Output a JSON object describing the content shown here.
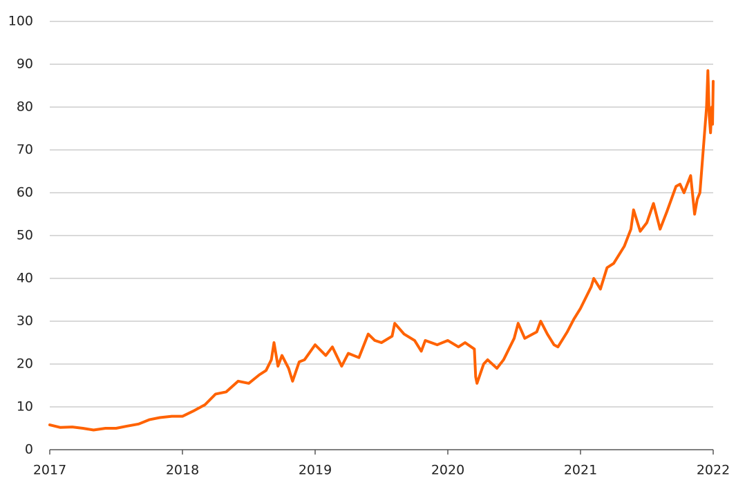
{
  "chart_data": {
    "type": "line",
    "x": [
      2017.0,
      2017.08,
      2017.17,
      2017.25,
      2017.33,
      2017.42,
      2017.5,
      2017.58,
      2017.67,
      2017.75,
      2017.83,
      2017.92,
      2018.0,
      2018.08,
      2018.17,
      2018.25,
      2018.33,
      2018.42,
      2018.5,
      2018.58,
      2018.63,
      2018.67,
      2018.69,
      2018.72,
      2018.75,
      2018.8,
      2018.83,
      2018.88,
      2018.92,
      2019.0,
      2019.08,
      2019.13,
      2019.2,
      2019.25,
      2019.33,
      2019.4,
      2019.45,
      2019.5,
      2019.58,
      2019.6,
      2019.67,
      2019.75,
      2019.8,
      2019.83,
      2019.92,
      2020.0,
      2020.08,
      2020.13,
      2020.2,
      2020.21,
      2020.22,
      2020.27,
      2020.3,
      2020.37,
      2020.42,
      2020.5,
      2020.53,
      2020.58,
      2020.67,
      2020.7,
      2020.75,
      2020.8,
      2020.83,
      2020.9,
      2020.95,
      2021.0,
      2021.08,
      2021.1,
      2021.15,
      2021.2,
      2021.25,
      2021.33,
      2021.38,
      2021.4,
      2021.45,
      2021.5,
      2021.55,
      2021.6,
      2021.65,
      2021.72,
      2021.75,
      2021.78,
      2021.83,
      2021.86,
      2021.88,
      2021.9,
      2021.92,
      2021.95,
      2021.96,
      2021.97,
      2021.98,
      2021.99,
      2021.995,
      2022.0
    ],
    "series": [
      {
        "color": "#ff6200",
        "values": [
          5.8,
          5.2,
          5.3,
          5.0,
          4.6,
          5.0,
          5.0,
          5.5,
          6.0,
          7.0,
          7.5,
          7.8,
          7.8,
          9.0,
          10.5,
          13.0,
          13.5,
          16.0,
          15.5,
          17.5,
          18.5,
          21.0,
          25.0,
          19.5,
          22.0,
          19.0,
          16.0,
          20.5,
          21.0,
          24.5,
          22.0,
          24.0,
          19.5,
          22.5,
          21.5,
          27.0,
          25.5,
          25.0,
          26.5,
          29.5,
          27.0,
          25.5,
          23.0,
          25.5,
          24.5,
          25.5,
          24.0,
          25.0,
          23.5,
          17.0,
          15.5,
          20.0,
          21.0,
          19.0,
          21.0,
          26.0,
          29.5,
          26.0,
          27.5,
          30.0,
          27.0,
          24.5,
          24.0,
          27.5,
          30.5,
          33.0,
          38.0,
          40.0,
          37.5,
          42.5,
          43.5,
          47.5,
          51.5,
          56.0,
          51.0,
          53.0,
          57.5,
          51.5,
          55.5,
          61.5,
          62.0,
          60.0,
          64.0,
          55.0,
          58.5,
          60.0,
          68.0,
          80.0,
          88.5,
          78.0,
          74.0,
          80.0,
          76.0,
          86.0
        ]
      }
    ],
    "xlim": [
      2017,
      2022
    ],
    "xticks": [
      2017,
      2018,
      2019,
      2020,
      2021,
      2022
    ],
    "ylim": [
      0,
      100
    ],
    "yticks": [
      0,
      10,
      20,
      30,
      40,
      50,
      60,
      70,
      80,
      90,
      100
    ],
    "grid": true
  }
}
